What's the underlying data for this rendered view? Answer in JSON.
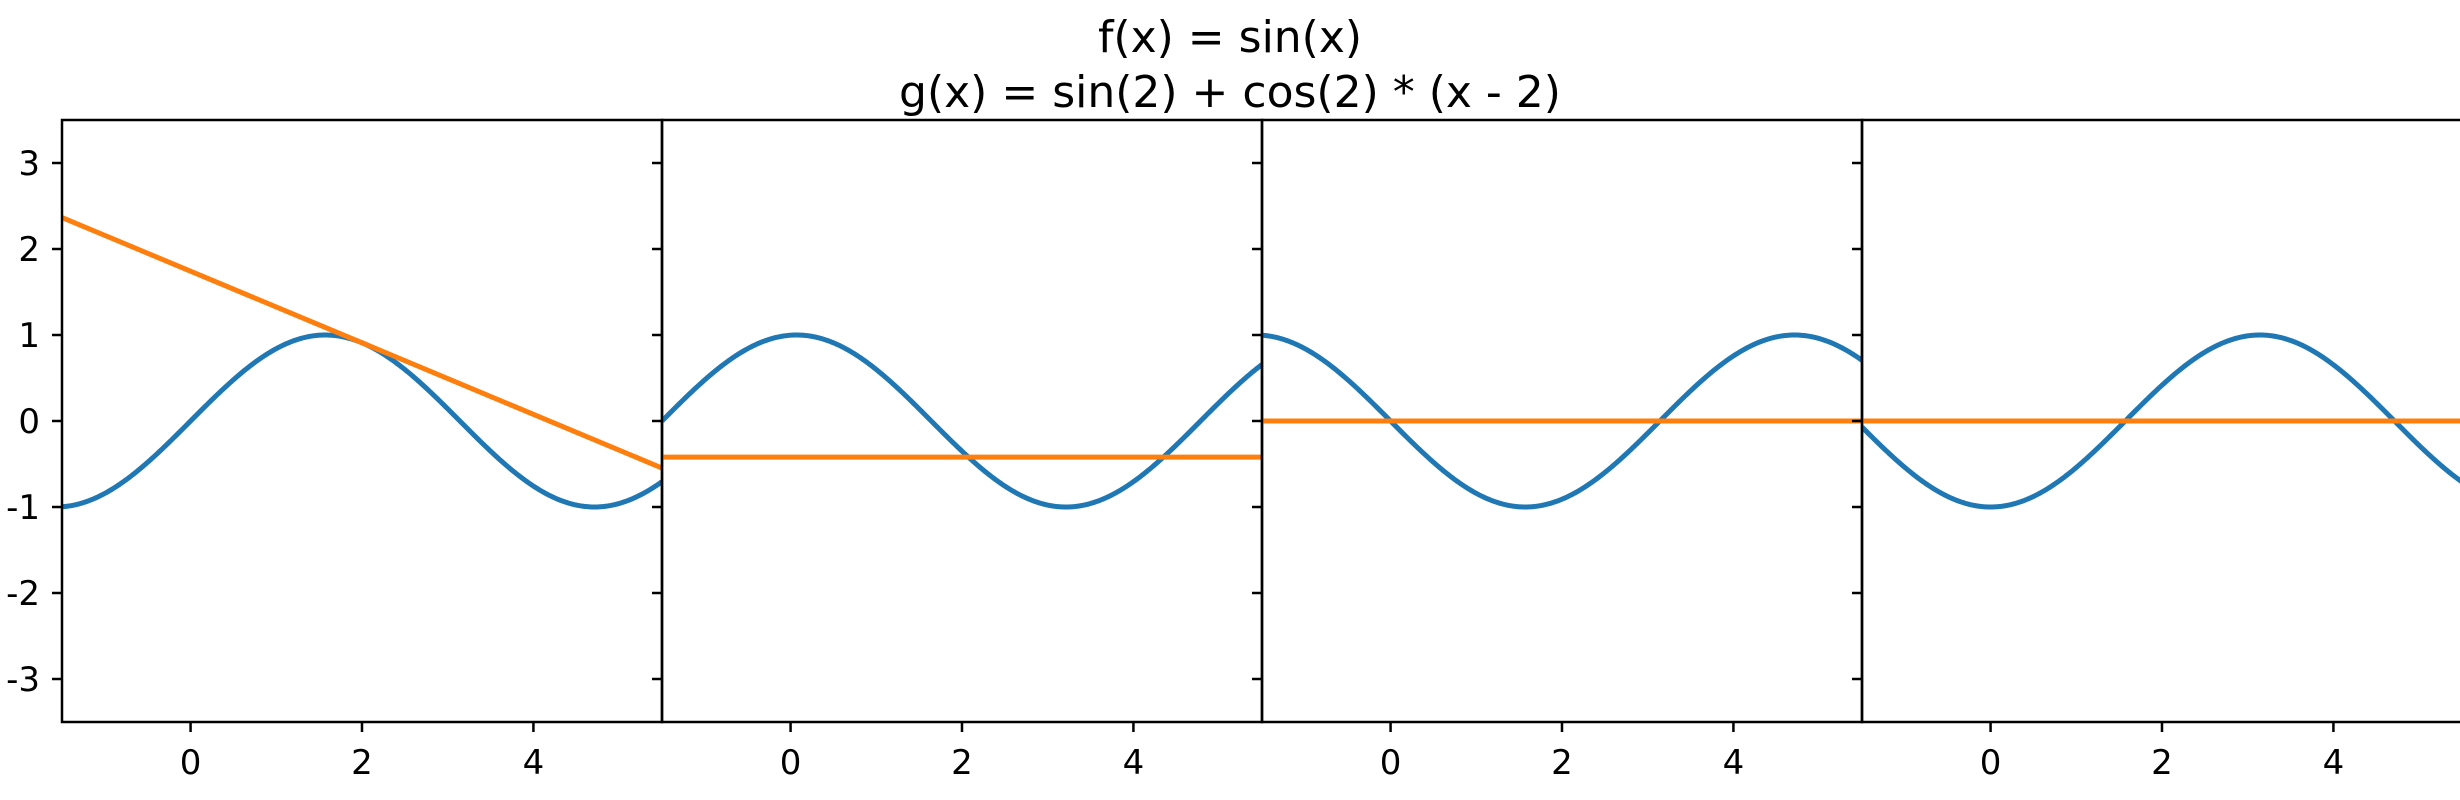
{
  "title": {
    "line1": "f(x) = sin(x)",
    "line2": "g(x) = sin(2) + cos(2) * (x - 2)"
  },
  "chart_data": [
    {
      "type": "line",
      "title": "",
      "xlim": [
        -1.5,
        5.5
      ],
      "ylim": [
        -3.5,
        3.5
      ],
      "xticks": [
        "0",
        "2",
        "4"
      ],
      "xtick_values": [
        0,
        2,
        4
      ],
      "yticks": [
        "-3",
        "-2",
        "-1",
        "0",
        "1",
        "2",
        "3"
      ],
      "ytick_values": [
        -3,
        -2,
        -1,
        0,
        1,
        2,
        3
      ],
      "series": [
        {
          "label": "f(x) = sin(x)",
          "function": "sin(x)",
          "color": "#1f77b4"
        },
        {
          "label": "g(x) = sin(2) + cos(2) * (x - 2)",
          "function": "sin(2) + cos(2) * (x - 2)",
          "color": "#ff7f0e",
          "points": [
            [
              -1.5,
              2.366
            ],
            [
              5.5,
              -0.547
            ]
          ]
        }
      ]
    },
    {
      "type": "line",
      "title": "",
      "xlim": [
        -1.5,
        5.5
      ],
      "ylim": [
        -3.5,
        3.5
      ],
      "xticks": [
        "0",
        "2",
        "4"
      ],
      "xtick_values": [
        0,
        2,
        4
      ],
      "yticks": [],
      "ytick_values": [
        -3,
        -2,
        -1,
        0,
        1,
        2,
        3
      ],
      "series": [
        {
          "label": "f(x)",
          "function": "sin(x + 1.5)",
          "color": "#1f77b4"
        },
        {
          "label": "g(x)",
          "function": "constant",
          "color": "#ff7f0e",
          "points": [
            [
              -1.5,
              -0.42
            ],
            [
              5.5,
              -0.42
            ]
          ]
        }
      ]
    },
    {
      "type": "line",
      "title": "",
      "xlim": [
        -1.5,
        5.5
      ],
      "ylim": [
        -3.5,
        3.5
      ],
      "xticks": [
        "0",
        "2",
        "4"
      ],
      "xtick_values": [
        0,
        2,
        4
      ],
      "yticks": [],
      "ytick_values": [
        -3,
        -2,
        -1,
        0,
        1,
        2,
        3
      ],
      "series": [
        {
          "label": "f(x)",
          "function": "-sin(x)",
          "color": "#1f77b4"
        },
        {
          "label": "g(x)",
          "function": "constant",
          "color": "#ff7f0e",
          "points": [
            [
              -1.5,
              0
            ],
            [
              5.5,
              0
            ]
          ]
        }
      ]
    },
    {
      "type": "line",
      "title": "",
      "xlim": [
        -1.5,
        5.5
      ],
      "ylim": [
        -3.5,
        3.5
      ],
      "xticks": [
        "0",
        "2",
        "4"
      ],
      "xtick_values": [
        0,
        2,
        4
      ],
      "yticks": [],
      "ytick_values": [
        -3,
        -2,
        -1,
        0,
        1,
        2,
        3
      ],
      "series": [
        {
          "label": "f(x)",
          "function": "-cos(x)",
          "color": "#1f77b4"
        },
        {
          "label": "g(x)",
          "function": "constant",
          "color": "#ff7f0e",
          "points": [
            [
              -1.5,
              0
            ],
            [
              5.5,
              0
            ]
          ]
        }
      ]
    }
  ]
}
